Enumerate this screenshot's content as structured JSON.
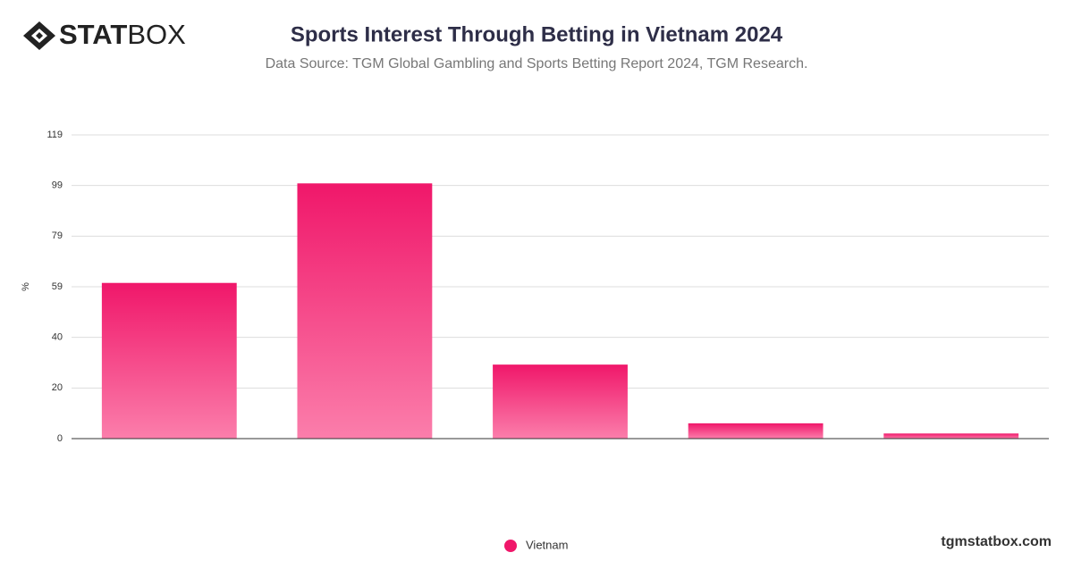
{
  "logo": {
    "bold": "STAT",
    "light": "BOX"
  },
  "footer": "tgmstatbox.com",
  "chart_data": {
    "type": "bar",
    "title": "Sports Interest Through Betting in Vietnam 2024",
    "subtitle": "Data Source: TGM Global Gambling and Sports Betting Report 2024, TGM Research.",
    "y_label": "%",
    "categories": [
      null,
      null,
      null,
      null,
      null
    ],
    "series": [
      {
        "name": "Vietnam",
        "color": "#f0176a",
        "values": [
          61,
          100,
          29,
          6,
          2
        ]
      }
    ],
    "ylim": [
      0,
      119
    ],
    "yticks": [
      0,
      {
        "value": 19.83,
        "label": "20"
      },
      {
        "value": 39.67,
        "label": "40"
      },
      {
        "value": 59.5,
        "label": "59"
      },
      {
        "value": 79.33,
        "label": "79"
      },
      {
        "value": 99.17,
        "label": "99"
      },
      119
    ],
    "grid": true,
    "legend": "bottom"
  }
}
